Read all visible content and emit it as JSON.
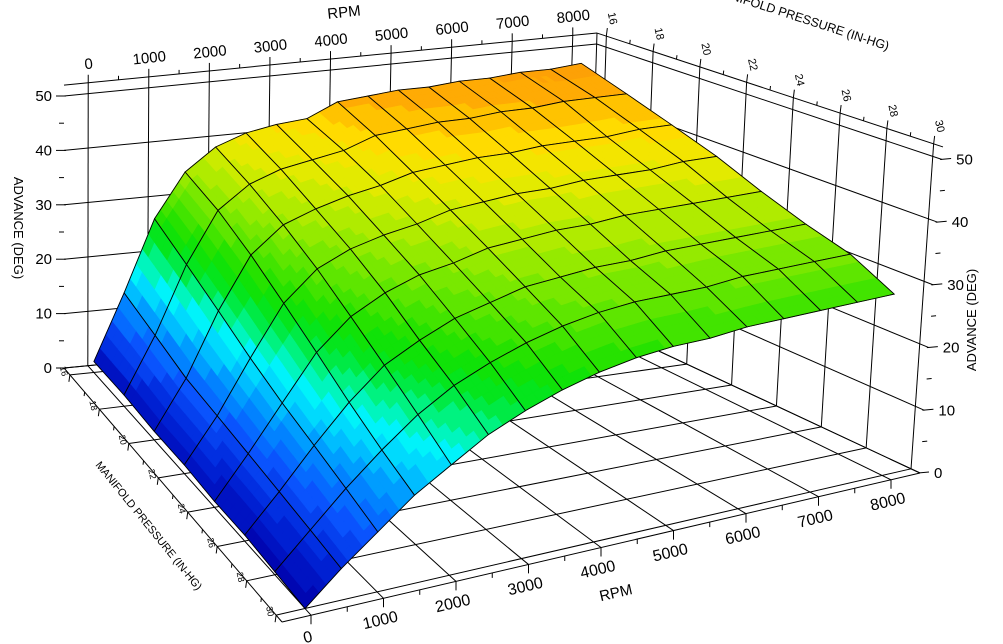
{
  "figure": {
    "background": "#ffffff",
    "line_color": "#000000",
    "axis_titles": {
      "rpm_top": "RPM",
      "rpm_bottom": "RPM",
      "manifold_top": "MANIFOLD PRESSURE (IN-HG)",
      "manifold_bottom": "MANIFOLD PRESSURE (IN-HG)",
      "advance_left": "ADVANCE (DEG)",
      "advance_right": "ADVANCE (DEG)"
    }
  },
  "chart_data": {
    "type": "surface3d",
    "title": "",
    "xlabel": "RPM",
    "ylabel": "MANIFOLD PRESSURE (IN-HG)",
    "zlabel": "ADVANCE (DEG)",
    "x_axis": {
      "range": [
        -400,
        8400
      ],
      "major_ticks": [
        0,
        1000,
        2000,
        3000,
        4000,
        5000,
        6000,
        7000,
        8000
      ],
      "major_labels": [
        "0",
        "1000",
        "2000",
        "3000",
        "4000",
        "5000",
        "6000",
        "7000",
        "8000"
      ],
      "minor_ticks": [
        500,
        1500,
        2500,
        3500,
        4500,
        5500,
        6500,
        7500
      ]
    },
    "y_axis": {
      "range": [
        15.6,
        30.4
      ],
      "major_ticks": [
        16,
        18,
        20,
        22,
        24,
        26,
        28,
        30
      ],
      "major_labels": [
        "16",
        "18",
        "20",
        "22",
        "24",
        "26",
        "28",
        "30"
      ],
      "minor_ticks": [
        17,
        19,
        21,
        23,
        25,
        27,
        29
      ]
    },
    "z_axis": {
      "range": [
        0,
        52
      ],
      "major_ticks": [
        0,
        10,
        20,
        30,
        40,
        50
      ],
      "major_labels": [
        "0",
        "10",
        "20",
        "30",
        "40",
        "50"
      ],
      "minor_ticks": [
        5,
        15,
        25,
        35,
        45
      ]
    },
    "grid": {
      "floor_rpm_step": 1000,
      "floor_map_step": 2,
      "wall_advance_step": 10
    },
    "rpm": [
      0,
      500,
      1000,
      1500,
      2000,
      2500,
      3000,
      3500,
      4000,
      4500,
      5000,
      5500,
      6000,
      6500,
      7000,
      7500,
      8000
    ],
    "manifold_pressure_inhg": [
      16,
      18,
      20,
      22,
      24,
      26,
      28,
      30
    ],
    "advance_deg": [
      [
        2.0,
        14.0,
        27.0,
        35.0,
        39.0,
        41.0,
        42.0,
        42.5,
        45.0,
        45.5,
        46.0,
        46.0,
        46.5,
        46.5,
        47.0,
        47.0,
        47.5
      ],
      [
        2.0,
        12.0,
        24.0,
        33.0,
        37.0,
        39.0,
        40.0,
        41.0,
        43.0,
        43.5,
        44.0,
        44.0,
        44.5,
        44.5,
        45.0,
        45.0,
        45.0
      ],
      [
        1.5,
        10.0,
        21.0,
        30.0,
        34.5,
        36.5,
        38.0,
        39.0,
        40.5,
        41.0,
        41.5,
        41.5,
        42.0,
        42.0,
        42.0,
        42.5,
        42.5
      ],
      [
        1.5,
        9.0,
        18.0,
        26.5,
        31.5,
        34.0,
        35.5,
        36.5,
        38.0,
        38.5,
        39.0,
        39.0,
        39.5,
        39.5,
        39.5,
        40.0,
        40.0
      ],
      [
        1.0,
        8.0,
        15.5,
        23.0,
        28.0,
        31.0,
        33.0,
        34.0,
        35.5,
        36.0,
        36.5,
        36.5,
        37.0,
        37.0,
        37.0,
        37.0,
        37.0
      ],
      [
        1.0,
        7.0,
        13.5,
        19.5,
        24.5,
        27.5,
        30.0,
        31.5,
        33.0,
        33.5,
        34.0,
        34.0,
        34.5,
        34.5,
        34.5,
        34.5,
        34.5
      ],
      [
        0.5,
        6.0,
        11.5,
        16.5,
        21.0,
        24.5,
        27.0,
        29.0,
        30.5,
        31.5,
        32.0,
        32.0,
        32.0,
        32.5,
        32.5,
        32.5,
        32.5
      ],
      [
        0.0,
        5.0,
        9.5,
        14.0,
        17.5,
        21.0,
        23.5,
        25.5,
        27.0,
        28.0,
        28.5,
        28.5,
        29.0,
        29.0,
        29.0,
        29.0,
        29.0
      ]
    ],
    "palette_stops": [
      [
        0,
        0,
        0,
        170
      ],
      [
        5,
        0,
        40,
        220
      ],
      [
        9,
        10,
        85,
        255
      ],
      [
        13,
        0,
        145,
        255
      ],
      [
        16,
        0,
        205,
        255
      ],
      [
        18.5,
        0,
        245,
        250
      ],
      [
        21,
        0,
        245,
        150
      ],
      [
        24,
        0,
        230,
        40
      ],
      [
        27,
        20,
        225,
        0
      ],
      [
        31,
        90,
        230,
        0
      ],
      [
        35,
        160,
        235,
        0
      ],
      [
        39,
        225,
        235,
        0
      ],
      [
        42,
        255,
        225,
        0
      ],
      [
        44,
        255,
        195,
        0
      ],
      [
        46,
        255,
        165,
        5
      ],
      [
        52,
        245,
        145,
        10
      ]
    ],
    "color_band_step": 1.6,
    "legend": "none",
    "colors": {
      "low": "#0000aa",
      "mid": "#00e028",
      "high": "#f8940a"
    }
  }
}
